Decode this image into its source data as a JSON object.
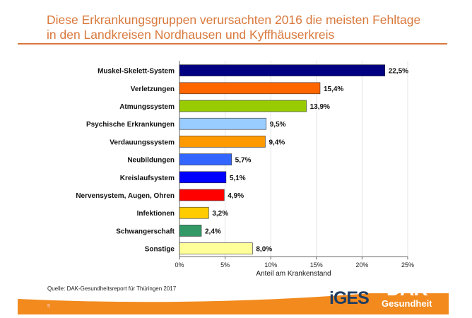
{
  "title_line1": "Diese Erkrankungsgruppen verursachten 2016 die meisten Fehltage",
  "title_line2": "in den Landkreisen Nordhausen und Kyffhäuserkreis",
  "source": "Quelle: DAK-Gesundheitsreport für Thüringen 2017",
  "page_number": "5",
  "logos": {
    "iges": "iGES",
    "dak_top": "DAK",
    "dak_bottom": "Gesundheit"
  },
  "chart_data": {
    "type": "bar",
    "orientation": "horizontal",
    "categories": [
      "Muskel-Skelett-System",
      "Verletzungen",
      "Atmungssystem",
      "Psychische Erkrankungen",
      "Verdauungssystem",
      "Neubildungen",
      "Kreislaufsystem",
      "Nervensystem, Augen, Ohren",
      "Infektionen",
      "Schwangerschaft",
      "Sonstige"
    ],
    "values": [
      22.5,
      15.4,
      13.9,
      9.5,
      9.4,
      5.7,
      5.1,
      4.9,
      3.2,
      2.4,
      8.0
    ],
    "labels": [
      "22,5%",
      "15,4%",
      "13,9%",
      "9,5%",
      "9,4%",
      "5,7%",
      "5,1%",
      "4,9%",
      "3,2%",
      "2,4%",
      "8,0%"
    ],
    "colors": [
      "#000080",
      "#ff6600",
      "#99cc00",
      "#99ccff",
      "#ff9900",
      "#3366ff",
      "#0000ff",
      "#ff0000",
      "#ffcc00",
      "#339966",
      "#ffff99"
    ],
    "xlabel": "Anteil am Krankenstand",
    "xlim": [
      0,
      25
    ],
    "xticks": [
      "0%",
      "5%",
      "10%",
      "15%",
      "20%",
      "25%"
    ],
    "grid": true
  }
}
